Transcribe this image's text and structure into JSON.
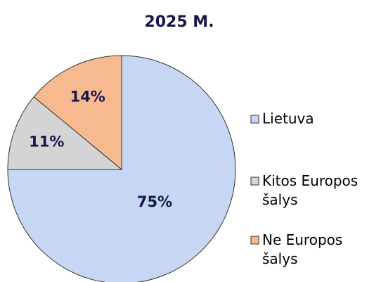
{
  "chart_data": {
    "type": "pie",
    "title": "2025 M.",
    "categories": [
      "Lietuva",
      "Kitos Europos šalys",
      "Ne Europos šalys"
    ],
    "values": [
      75,
      11,
      14
    ],
    "value_labels": [
      "75%",
      "11%",
      "14%"
    ],
    "colors": [
      "#c6d6f3",
      "#d4d4d4",
      "#f7ba90"
    ]
  }
}
